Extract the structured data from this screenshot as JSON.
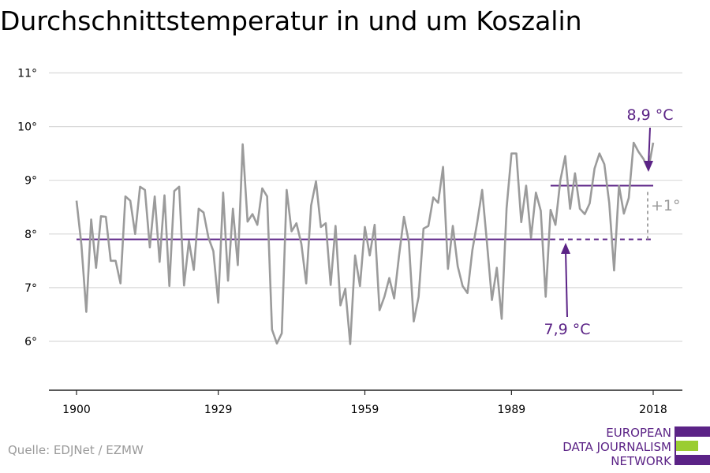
{
  "title": "Durchschnittstemperatur in und um Koszalin",
  "source": "Quelle: EDJNet / EZMW",
  "logo": {
    "lines": [
      "EUROPEAN",
      "DATA JOURNALISM",
      "NETWORK"
    ]
  },
  "colors": {
    "series": "#9b9b9b",
    "average": "#5b2386",
    "grid": "#d9d9d9",
    "logo_green": "#9acd32"
  },
  "chart_data": {
    "type": "line",
    "xlim": [
      1900,
      2018
    ],
    "ylim": [
      5,
      11
    ],
    "y_ticks": [
      {
        "value": 6,
        "label": "6°"
      },
      {
        "value": 7,
        "label": "7°"
      },
      {
        "value": 8,
        "label": "8°"
      },
      {
        "value": 9,
        "label": "9°"
      },
      {
        "value": 10,
        "label": "10°"
      },
      {
        "value": 11,
        "label": "11°"
      }
    ],
    "x_ticks": [
      {
        "value": 1900,
        "label": "1900"
      },
      {
        "value": 1929,
        "label": "1929"
      },
      {
        "value": 1959,
        "label": "1959"
      },
      {
        "value": 1989,
        "label": "1989"
      },
      {
        "value": 2018,
        "label": "2018"
      }
    ],
    "grid": true,
    "x": [
      1900,
      1901,
      1902,
      1903,
      1904,
      1905,
      1906,
      1907,
      1908,
      1909,
      1910,
      1911,
      1912,
      1913,
      1914,
      1915,
      1916,
      1917,
      1918,
      1919,
      1920,
      1921,
      1922,
      1923,
      1924,
      1925,
      1926,
      1927,
      1928,
      1929,
      1930,
      1931,
      1932,
      1933,
      1934,
      1935,
      1936,
      1937,
      1938,
      1939,
      1940,
      1941,
      1942,
      1943,
      1944,
      1945,
      1946,
      1947,
      1948,
      1949,
      1950,
      1951,
      1952,
      1953,
      1954,
      1955,
      1956,
      1957,
      1958,
      1959,
      1960,
      1961,
      1962,
      1963,
      1964,
      1965,
      1966,
      1967,
      1968,
      1969,
      1970,
      1971,
      1972,
      1973,
      1974,
      1975,
      1976,
      1977,
      1978,
      1979,
      1980,
      1981,
      1982,
      1983,
      1984,
      1985,
      1986,
      1987,
      1988,
      1989,
      1990,
      1991,
      1992,
      1993,
      1994,
      1995,
      1996,
      1997,
      1998,
      1999,
      2000,
      2001,
      2002,
      2003,
      2004,
      2005,
      2006,
      2007,
      2008,
      2009,
      2010,
      2011,
      2012,
      2013,
      2014,
      2015,
      2016,
      2017,
      2018
    ],
    "series": [
      {
        "values": [
          8.62,
          7.8,
          6.55,
          8.27,
          7.37,
          8.33,
          8.32,
          7.5,
          7.5,
          7.08,
          8.7,
          8.62,
          8.0,
          8.88,
          8.82,
          7.75,
          8.7,
          7.48,
          8.72,
          7.03,
          8.8,
          8.88,
          7.04,
          7.87,
          7.33,
          8.47,
          8.4,
          7.93,
          7.68,
          6.72,
          8.77,
          7.13,
          8.47,
          7.42,
          9.67,
          8.23,
          8.37,
          8.17,
          8.85,
          8.7,
          6.22,
          5.96,
          6.15,
          8.82,
          8.05,
          8.2,
          7.82,
          7.08,
          8.53,
          8.98,
          8.13,
          8.2,
          7.05,
          8.15,
          6.67,
          6.98,
          5.95,
          7.6,
          7.03,
          8.13,
          7.6,
          8.17,
          6.58,
          6.83,
          7.18,
          6.8,
          7.6,
          8.32,
          7.85,
          6.37,
          6.83,
          8.1,
          8.15,
          8.68,
          8.58,
          9.25,
          7.35,
          8.15,
          7.4,
          7.03,
          6.9,
          7.7,
          8.22,
          8.82,
          7.82,
          6.77,
          7.37,
          6.42,
          8.48,
          9.5,
          9.5,
          8.22,
          8.9,
          7.93,
          8.77,
          8.43,
          6.83,
          8.45,
          8.17,
          9.0,
          9.45,
          8.47,
          9.13,
          8.47,
          8.37,
          8.57,
          9.22,
          9.5,
          9.3,
          8.58,
          7.32,
          8.9,
          8.38,
          8.67,
          9.7,
          9.53,
          9.4,
          9.2,
          9.7
        ]
      }
    ],
    "reference_lines": [
      {
        "label": "7,9 °C",
        "value": 7.9
      },
      {
        "label": "8,9 °C",
        "value": 8.9
      }
    ],
    "difference_label": "+1°"
  }
}
